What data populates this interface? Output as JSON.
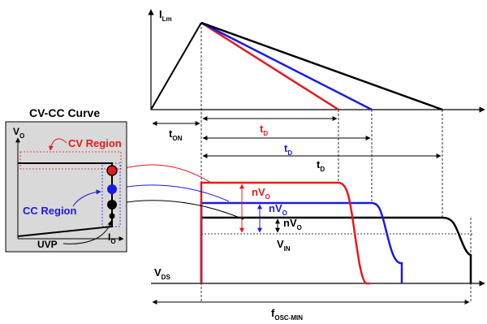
{
  "labels": {
    "i_lm": {
      "main": "I",
      "sub": "Lm"
    },
    "cv_cc_title": "CV-CC Curve",
    "vo_axis": {
      "main": "V",
      "sub": "O"
    },
    "io_axis": {
      "main": "I",
      "sub": "O"
    },
    "cv_region": "CV Region",
    "cc_region": "CC Region",
    "uvp": "UVP",
    "t_on": {
      "main": "t",
      "sub": "ON"
    },
    "t_d_red": {
      "main": "t",
      "sub": "D"
    },
    "t_d_blue": {
      "main": "t",
      "sub": "D"
    },
    "t_d_black": {
      "main": "t",
      "sub": "D"
    },
    "nvo_red": {
      "main": "nV",
      "sub": "O"
    },
    "nvo_blue": {
      "main": "nV",
      "sub": "O"
    },
    "nvo_black": {
      "main": "nV",
      "sub": "O"
    },
    "v_in": {
      "main": "V",
      "sub": "IN"
    },
    "v_ds": {
      "main": "V",
      "sub": "DS"
    },
    "f_osc_min": {
      "main": "f",
      "sub": "OSC-MIN"
    }
  },
  "colors": {
    "red": "#e8191b",
    "blue": "#1a1ae6",
    "black": "#000000",
    "panel_fill": "#d9d9d9"
  }
}
